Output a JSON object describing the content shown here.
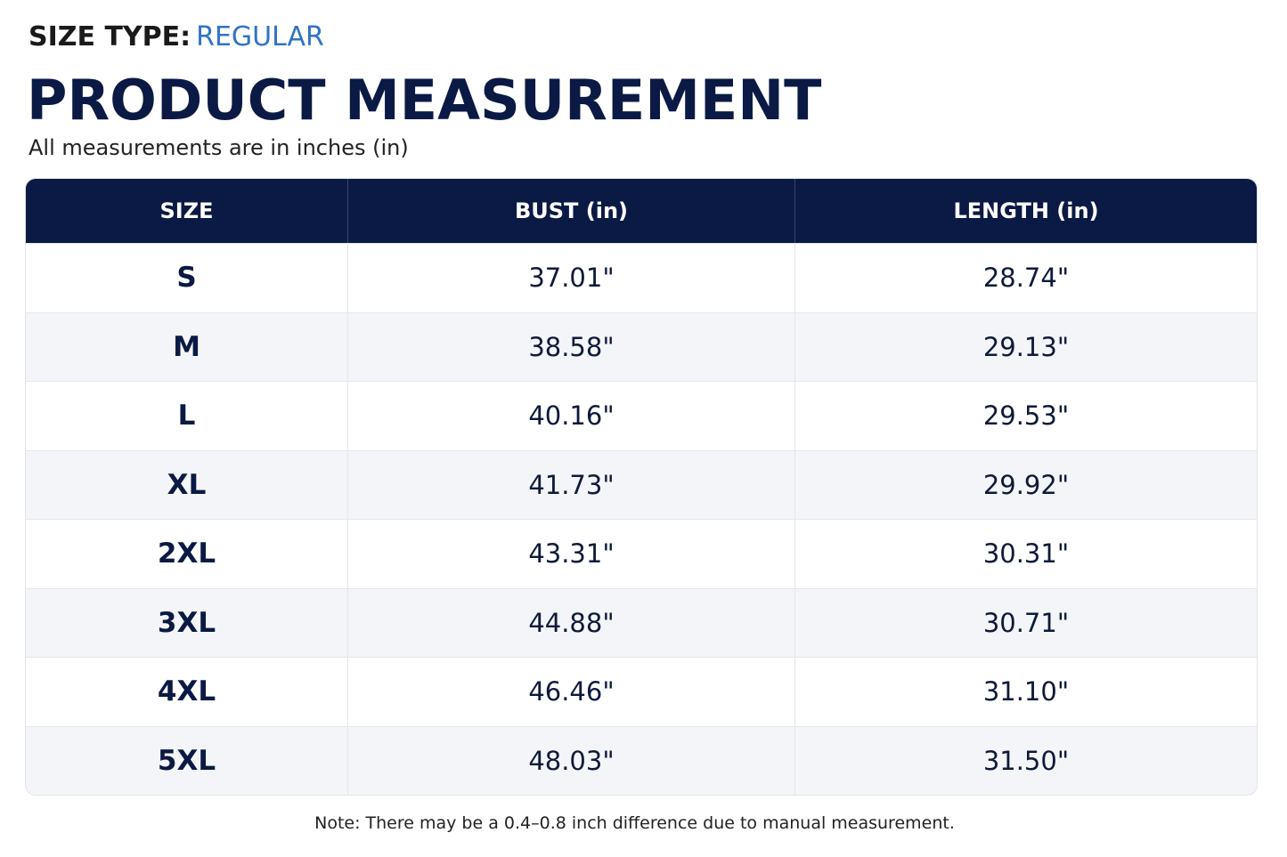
{
  "header": {
    "size_type_label": "SIZE TYPE:",
    "size_type_value": "REGULAR",
    "title": "PRODUCT MEASUREMENT",
    "subtitle": "All measurements are in inches (in)"
  },
  "table": {
    "columns": [
      "SIZE",
      "BUST (in)",
      "LENGTH (in)"
    ],
    "rows": [
      [
        "S",
        "37.01\"",
        "28.74\""
      ],
      [
        "M",
        "38.58\"",
        "29.13\""
      ],
      [
        "L",
        "40.16\"",
        "29.53\""
      ],
      [
        "XL",
        "41.73\"",
        "29.92\""
      ],
      [
        "2XL",
        "43.31\"",
        "30.31\""
      ],
      [
        "3XL",
        "44.88\"",
        "30.71\""
      ],
      [
        "4XL",
        "46.46\"",
        "31.10\""
      ],
      [
        "5XL",
        "48.03\"",
        "31.50\""
      ]
    ]
  },
  "note": "Note: There may be a 0.4–0.8 inch difference due to manual measurement."
}
